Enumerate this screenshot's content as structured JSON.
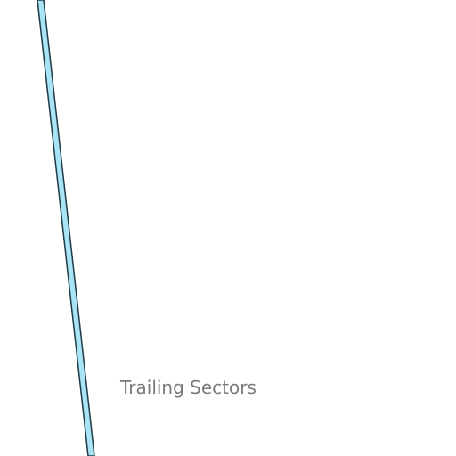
{
  "diagram": {
    "label": "Trailing Sectors",
    "line_fill_color": "#a8e4f5",
    "line_stroke_color": "#1e3a44",
    "label_color": "#7a7a7a",
    "background_color": "#ffffff"
  }
}
